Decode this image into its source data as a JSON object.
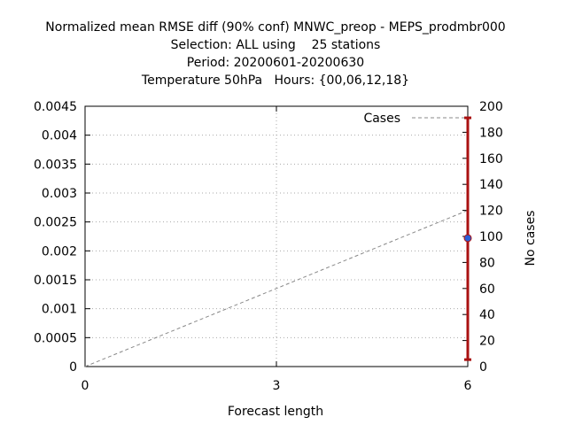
{
  "chart_data": {
    "type": "line",
    "title_lines": [
      "Normalized mean RMSE diff (90% conf) MNWC_preop - MEPS_prodmbr000",
      "Selection: ALL using    25 stations",
      "Period: 20200601-20200630",
      "Temperature 50hPa   Hours: {00,06,12,18}"
    ],
    "xlabel": "Forecast length",
    "ylabel_right": "No cases",
    "xlim": [
      0,
      6
    ],
    "ylim": [
      0,
      0.0045
    ],
    "y2lim": [
      0,
      200
    ],
    "x_ticks": [
      "0",
      "3",
      "6"
    ],
    "x_tick_values": [
      0,
      3,
      6
    ],
    "y_ticks": [
      "0",
      "0.0005",
      "0.001",
      "0.0015",
      "0.002",
      "0.0025",
      "0.003",
      "0.0035",
      "0.004",
      "0.0045"
    ],
    "y_tick_values": [
      0,
      0.0005,
      0.001,
      0.0015,
      0.002,
      0.0025,
      0.003,
      0.0035,
      0.004,
      0.0045
    ],
    "y2_ticks": [
      "0",
      "20",
      "40",
      "60",
      "80",
      "100",
      "120",
      "140",
      "160",
      "180",
      "200"
    ],
    "y2_tick_values": [
      0,
      20,
      40,
      60,
      80,
      100,
      120,
      140,
      160,
      180,
      200
    ],
    "grid": true,
    "legend": {
      "entries": [
        "Cases"
      ],
      "placement": "top-right"
    },
    "series": [
      {
        "name": "Cases",
        "axis": "y2",
        "style": "dashed",
        "color": "#888888",
        "x": [
          0,
          6
        ],
        "values": [
          0,
          120
        ]
      },
      {
        "name": "RMSE diff",
        "axis": "y",
        "style": "point-with-errorbar",
        "color": "#2a5fd6",
        "error_color": "#aa1111",
        "x": [
          6
        ],
        "values": [
          0.00222
        ],
        "lower": [
          0.00012
        ],
        "upper": [
          0.0043
        ]
      }
    ]
  }
}
